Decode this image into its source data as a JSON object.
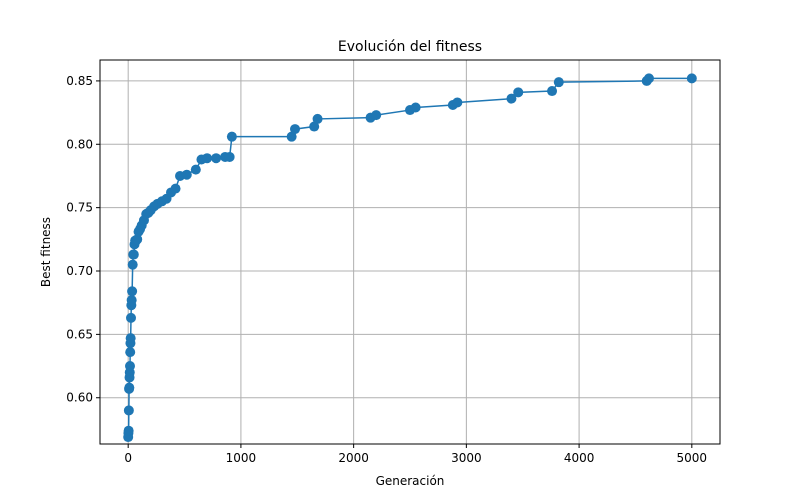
{
  "chart_data": {
    "type": "line",
    "title": "Evolución del fitness",
    "xlabel": "Generación",
    "ylabel": "Best fitness",
    "xlim": [
      -250,
      5250
    ],
    "ylim": [
      0.5635,
      0.8665
    ],
    "xticks": [
      0,
      1000,
      2000,
      3000,
      4000,
      5000
    ],
    "xtick_labels": [
      "0",
      "1000",
      "2000",
      "3000",
      "4000",
      "5000"
    ],
    "yticks": [
      0.6,
      0.65,
      0.7,
      0.75,
      0.8,
      0.85
    ],
    "ytick_labels": [
      "0.60",
      "0.65",
      "0.70",
      "0.75",
      "0.80",
      "0.85"
    ],
    "grid": true,
    "marker": "circle",
    "color": "#1f77b4",
    "series": [
      {
        "x": [
          0,
          2,
          4,
          6,
          8,
          10,
          12,
          14,
          16,
          18,
          20,
          22,
          25,
          28,
          31,
          35,
          40,
          45,
          50,
          56,
          62,
          70,
          80,
          92,
          105,
          120,
          140,
          160,
          180,
          200,
          230,
          260,
          300,
          340,
          380,
          420,
          460,
          520,
          600,
          650,
          700,
          780,
          860,
          900,
          920,
          1450,
          1480,
          1650,
          1680,
          2150,
          2200,
          2500,
          2550,
          2880,
          2920,
          3400,
          3460,
          3760,
          3820,
          4600,
          4620,
          5000
        ],
        "y": [
          0.569,
          0.572,
          0.574,
          0.59,
          0.607,
          0.608,
          0.616,
          0.62,
          0.625,
          0.636,
          0.643,
          0.647,
          0.663,
          0.673,
          0.677,
          0.684,
          0.705,
          0.713,
          0.713,
          0.721,
          0.724,
          0.724,
          0.725,
          0.731,
          0.733,
          0.736,
          0.74,
          0.745,
          0.746,
          0.748,
          0.751,
          0.753,
          0.755,
          0.757,
          0.762,
          0.765,
          0.775,
          0.776,
          0.78,
          0.788,
          0.789,
          0.789,
          0.79,
          0.79,
          0.806,
          0.806,
          0.812,
          0.814,
          0.82,
          0.821,
          0.823,
          0.827,
          0.829,
          0.831,
          0.833,
          0.836,
          0.841,
          0.842,
          0.849,
          0.85,
          0.852,
          0.852
        ]
      }
    ]
  }
}
